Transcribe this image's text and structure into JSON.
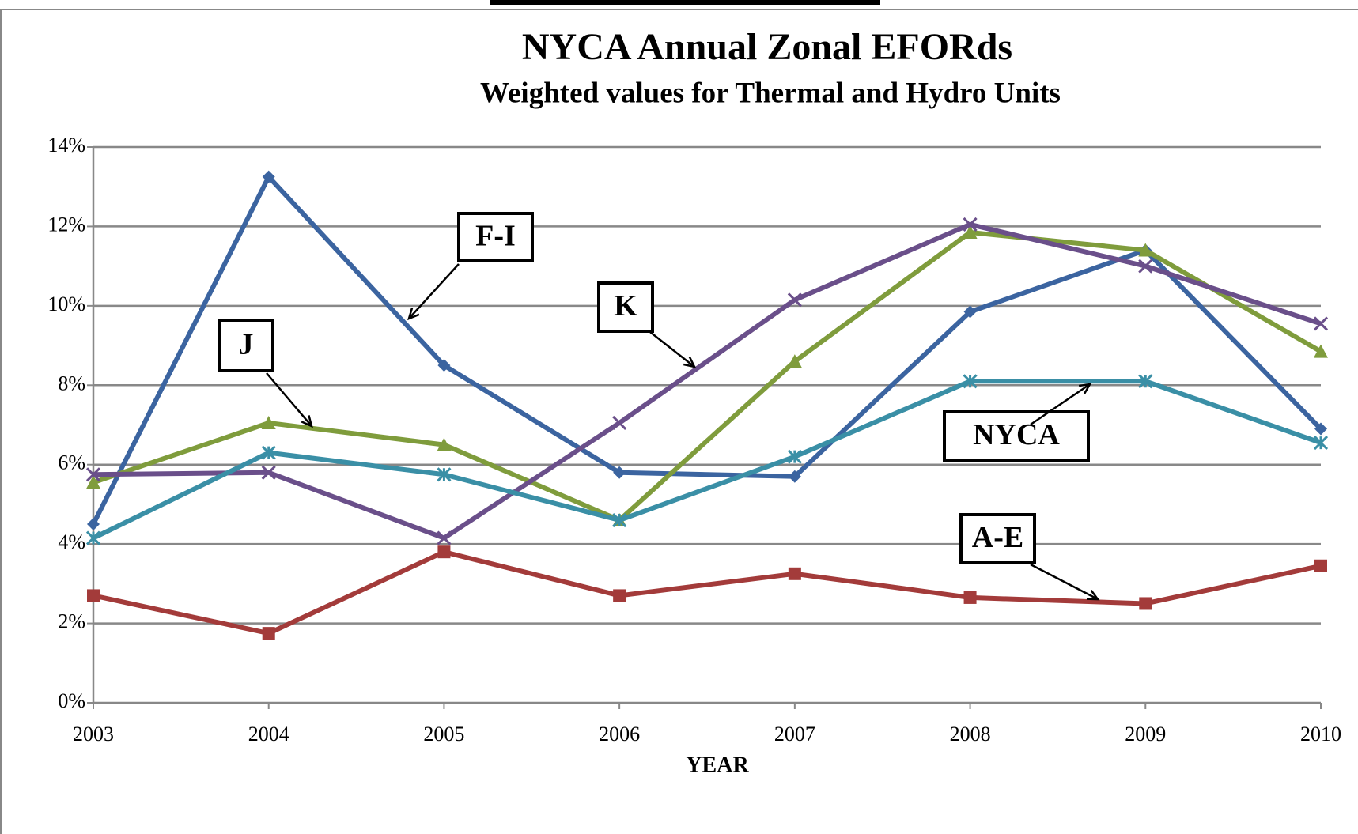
{
  "chart_data": {
    "type": "line",
    "title": "NYCA Annual Zonal EFORds",
    "subtitle": "Weighted values for Thermal and Hydro Units",
    "x_label": "YEAR",
    "categories": [
      "2003",
      "2004",
      "2005",
      "2006",
      "2007",
      "2008",
      "2009",
      "2010"
    ],
    "series": [
      {
        "name": "F-I",
        "color": "#3b64a0",
        "marker": "diamond",
        "values": [
          4.5,
          13.25,
          8.5,
          5.8,
          5.7,
          9.85,
          11.4,
          6.9
        ]
      },
      {
        "name": "A-E",
        "color": "#a33b3a",
        "marker": "square",
        "values": [
          2.7,
          1.75,
          3.8,
          2.7,
          3.25,
          2.65,
          2.5,
          3.45
        ]
      },
      {
        "name": "J",
        "color": "#7f9c3c",
        "marker": "triangle",
        "values": [
          5.55,
          7.05,
          6.5,
          4.6,
          8.6,
          11.85,
          11.4,
          8.85
        ]
      },
      {
        "name": "K",
        "color": "#6a4f8a",
        "marker": "x",
        "values": [
          5.75,
          5.8,
          4.15,
          7.05,
          10.15,
          12.05,
          11.0,
          9.55
        ]
      },
      {
        "name": "NYCA",
        "color": "#3a8fa6",
        "marker": "star",
        "values": [
          4.15,
          6.3,
          5.75,
          4.6,
          6.2,
          8.1,
          8.1,
          6.55
        ]
      }
    ],
    "ylim": [
      0,
      14
    ],
    "yticks": [
      {
        "value": 0,
        "label": "0%"
      },
      {
        "value": 2,
        "label": "2%"
      },
      {
        "value": 4,
        "label": "4%"
      },
      {
        "value": 6,
        "label": "6%"
      },
      {
        "value": 8,
        "label": "8%"
      },
      {
        "value": 10,
        "label": "10%"
      },
      {
        "value": 12,
        "label": "12%"
      },
      {
        "value": 14,
        "label": "14%"
      }
    ],
    "grid": true
  }
}
